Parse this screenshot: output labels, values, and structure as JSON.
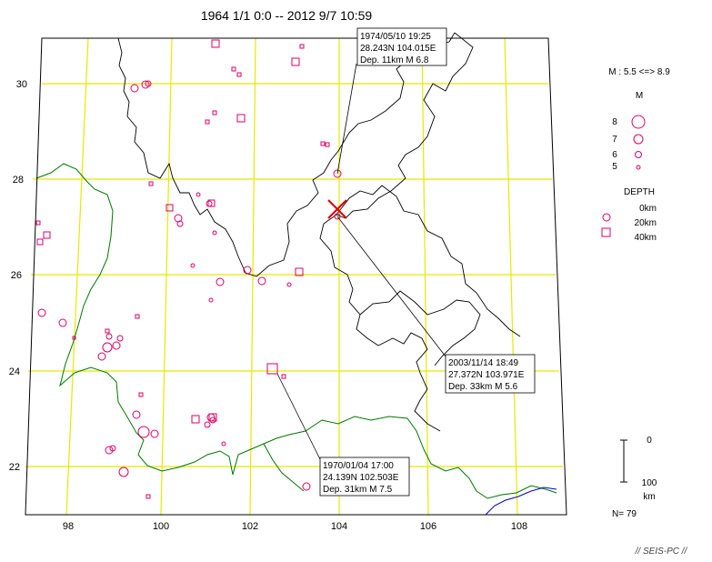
{
  "title": "1964 1/1 0:0 -- 2012 9/7 10:59",
  "map": {
    "lon_ticks": [
      "98",
      "100",
      "102",
      "104",
      "106",
      "108"
    ],
    "lat_ticks": [
      "30",
      "28",
      "26",
      "24",
      "22"
    ]
  },
  "callouts": [
    {
      "line1": "1974/05/10 19:25",
      "line2": "28.243N  104.015E",
      "line3": "Dep. 11km    M 6.8"
    },
    {
      "line1": "2003/11/14 18:49",
      "line2": "27.372N  103.971E",
      "line3": "Dep. 33km    M 5.6"
    },
    {
      "line1": "1970/01/04 17:00",
      "line2": "24.139N  102.503E",
      "line3": "Dep. 31km    M 7.5"
    }
  ],
  "legend": {
    "range": "M : 5.5 <=> 8.9",
    "mag_title": "M",
    "mags": [
      "8",
      "7",
      "6",
      "5"
    ],
    "depth_title": "DEPTH",
    "depths": [
      "0km",
      "20km",
      "40km"
    ],
    "scale_top": "0",
    "scale_bottom": "100",
    "scale_unit": "km",
    "count": "N= 79"
  },
  "credit": "// SEIS-PC //",
  "colors": {
    "grid": "#e8e800",
    "boundary": "#000000",
    "border": "#007700",
    "coast": "#0000cc",
    "marker": "#dd0066",
    "mark": "#dd0000"
  }
}
